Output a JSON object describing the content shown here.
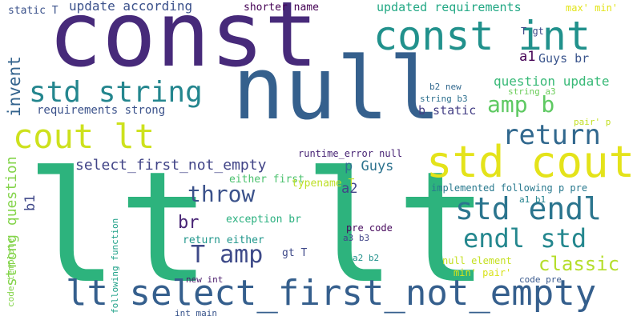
{
  "wordcloud": {
    "words": [
      {
        "text": "lt lt",
        "color": "#2db37d"
      },
      {
        "text": "const",
        "color": "#472a7a"
      },
      {
        "text": "null",
        "color": "#35608d"
      },
      {
        "text": "const int",
        "color": "#21918c"
      },
      {
        "text": "std cout",
        "color": "#e4e31a"
      },
      {
        "text": "lt select_first_not_empty",
        "color": "#355f8d"
      },
      {
        "text": "cout lt",
        "color": "#cde11d"
      },
      {
        "text": "std endl",
        "color": "#2b758e"
      },
      {
        "text": "std string",
        "color": "#24868e"
      },
      {
        "text": "return",
        "color": "#31688e"
      },
      {
        "text": "endl std",
        "color": "#24878e"
      },
      {
        "text": "amp b",
        "color": "#5ec962"
      },
      {
        "text": "T amp",
        "color": "#3e4a89"
      },
      {
        "text": "throw",
        "color": "#3b528b"
      },
      {
        "text": "classic",
        "color": "#b5de2b"
      },
      {
        "text": "select_first_not_empty",
        "color": "#414487"
      },
      {
        "text": "invent",
        "color": "#33638d"
      },
      {
        "text": "strong question",
        "color": "#84d44b"
      },
      {
        "text": "question update",
        "color": "#38b977"
      },
      {
        "text": "br",
        "color": "#482475"
      },
      {
        "text": "p Guys",
        "color": "#2c728e"
      },
      {
        "text": "a2",
        "color": "#404588"
      },
      {
        "text": "b1",
        "color": "#3f4889"
      },
      {
        "text": "a1",
        "color": "#440154"
      },
      {
        "text": "Guys br",
        "color": "#3a548c"
      },
      {
        "text": "update according",
        "color": "#3b518b"
      },
      {
        "text": "updated requirements",
        "color": "#22a884"
      },
      {
        "text": "shorter name",
        "color": "#440154"
      },
      {
        "text": "static T",
        "color": "#3b528b"
      },
      {
        "text": "max' min'",
        "color": "#e2e418"
      },
      {
        "text": "T gt",
        "color": "#3e4989"
      },
      {
        "text": "requirements strong",
        "color": "#3b528b"
      },
      {
        "text": "b static",
        "color": "#433e85"
      },
      {
        "text": "b2 new",
        "color": "#31688e"
      },
      {
        "text": "string b3",
        "color": "#2d708e"
      },
      {
        "text": "string a3",
        "color": "#6ccd5a"
      },
      {
        "text": "pair' p",
        "color": "#c2df23"
      },
      {
        "text": "runtime_error null",
        "color": "#482475"
      },
      {
        "text": "either first",
        "color": "#4ac16d"
      },
      {
        "text": "typename T",
        "color": "#bddf26"
      },
      {
        "text": "implemented following p pre",
        "color": "#29798e"
      },
      {
        "text": "exception br",
        "color": "#2ab07f"
      },
      {
        "text": "a1 b1",
        "color": "#25838e"
      },
      {
        "text": "return either",
        "color": "#1f968b"
      },
      {
        "text": "pre code",
        "color": "#46085c"
      },
      {
        "text": "a3 b3",
        "color": "#404588"
      },
      {
        "text": "gt T",
        "color": "#3e4989"
      },
      {
        "text": "a2 b2",
        "color": "#21918c"
      },
      {
        "text": "null element",
        "color": "#c5e021"
      },
      {
        "text": "min' pair'",
        "color": "#d8e219"
      },
      {
        "text": "code pre",
        "color": "#38588c"
      },
      {
        "text": "new int",
        "color": "#48186a"
      },
      {
        "text": "code template",
        "color": "#84d44b"
      },
      {
        "text": "following function",
        "color": "#1fa188"
      },
      {
        "text": "int main",
        "color": "#39558c"
      }
    ]
  }
}
